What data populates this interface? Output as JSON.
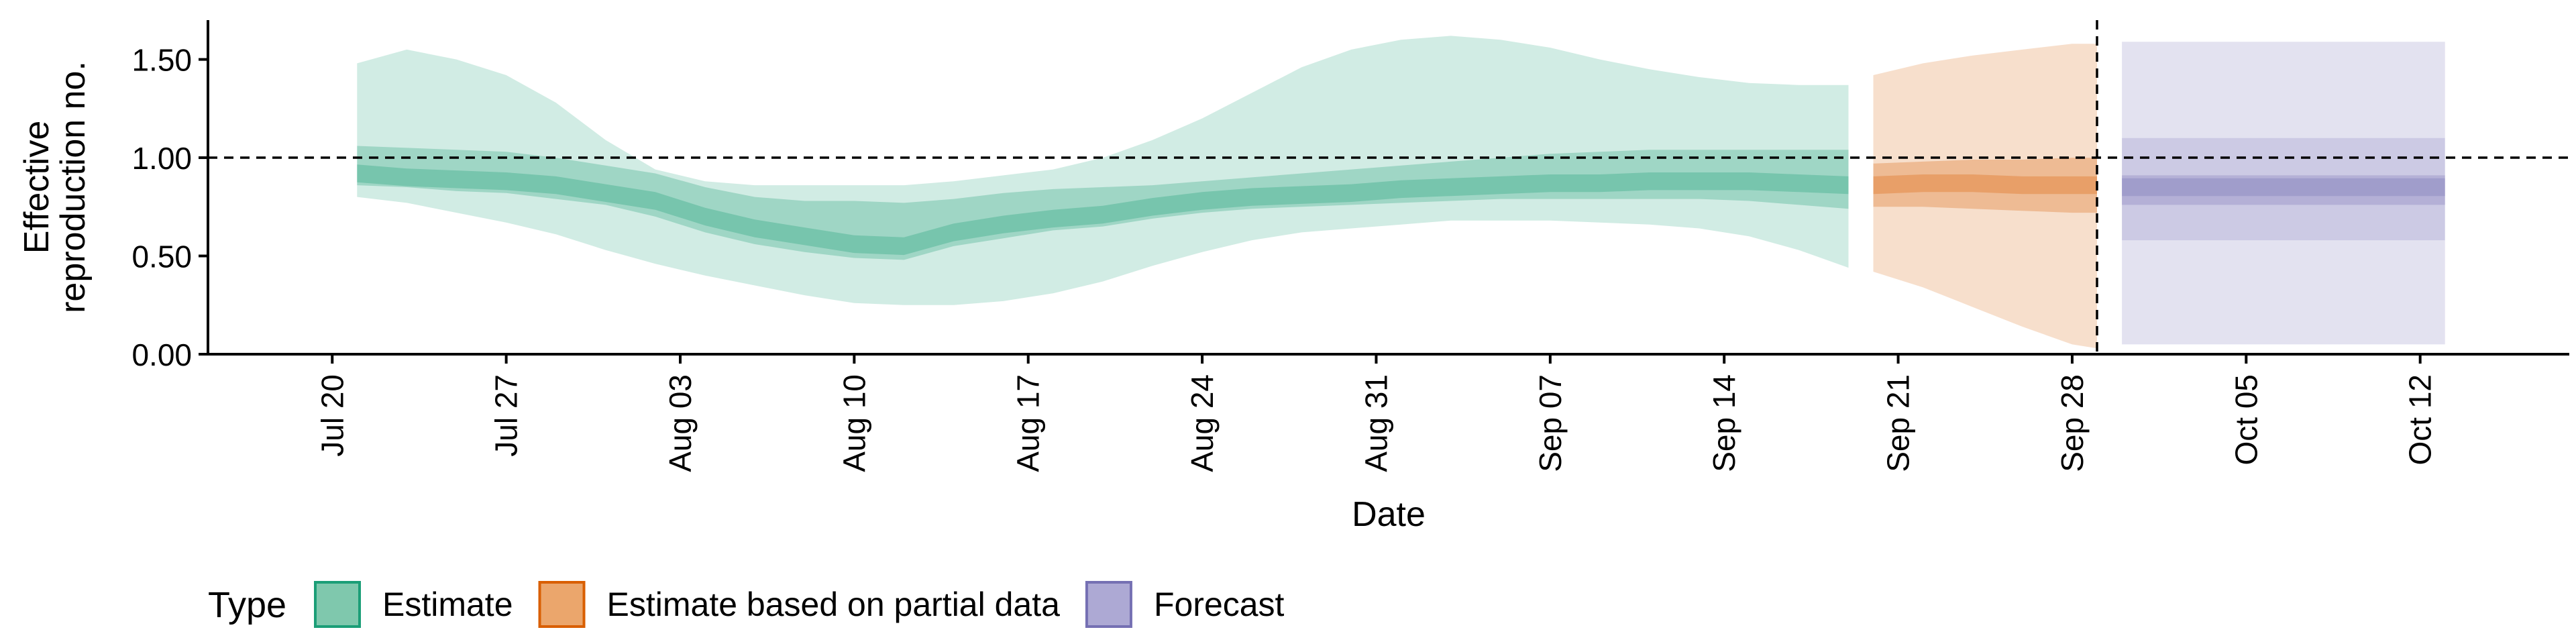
{
  "chart_data": {
    "type": "area",
    "title": "",
    "xlabel": "Date",
    "ylabel": "Effective reproduction no.",
    "ylabel_lines": [
      "Effective",
      "reproduction no."
    ],
    "ylim": [
      0,
      1.7
    ],
    "yticks": [
      "0.00",
      "0.50",
      "1.00",
      "1.50"
    ],
    "ytick_values": [
      0,
      0.5,
      1.0,
      1.5
    ],
    "xlim": [
      "2020-07-15",
      "2020-10-18"
    ],
    "xticks": [
      "Jul 20",
      "Jul 27",
      "Aug 03",
      "Aug 10",
      "Aug 17",
      "Aug 24",
      "Aug 31",
      "Sep 07",
      "Sep 14",
      "Sep 21",
      "Sep 28",
      "Oct 05",
      "Oct 12"
    ],
    "xtick_dates": [
      "2020-07-20",
      "2020-07-27",
      "2020-08-03",
      "2020-08-10",
      "2020-08-17",
      "2020-08-24",
      "2020-08-31",
      "2020-09-07",
      "2020-09-14",
      "2020-09-21",
      "2020-09-28",
      "2020-10-05",
      "2020-10-12"
    ],
    "reference_line": {
      "axis": "y",
      "value": 1.0,
      "style": "dashed"
    },
    "vertical_line": {
      "axis": "x",
      "value": "2020-09-29",
      "style": "dashed"
    },
    "grid": false,
    "legend_position": "bottom-left",
    "series": [
      {
        "name": "Estimate",
        "color": "#1b9e77",
        "dates": [
          "2020-07-21",
          "2020-07-23",
          "2020-07-25",
          "2020-07-27",
          "2020-07-29",
          "2020-07-31",
          "2020-08-02",
          "2020-08-04",
          "2020-08-06",
          "2020-08-08",
          "2020-08-10",
          "2020-08-12",
          "2020-08-14",
          "2020-08-16",
          "2020-08-18",
          "2020-08-20",
          "2020-08-22",
          "2020-08-24",
          "2020-08-26",
          "2020-08-28",
          "2020-08-30",
          "2020-09-01",
          "2020-09-03",
          "2020-09-05",
          "2020-09-07",
          "2020-09-09",
          "2020-09-11",
          "2020-09-13",
          "2020-09-15",
          "2020-09-17",
          "2020-09-19"
        ],
        "median": [
          0.92,
          0.9,
          0.89,
          0.88,
          0.86,
          0.82,
          0.78,
          0.7,
          0.64,
          0.6,
          0.56,
          0.55,
          0.62,
          0.66,
          0.69,
          0.71,
          0.75,
          0.78,
          0.8,
          0.81,
          0.82,
          0.84,
          0.85,
          0.86,
          0.87,
          0.87,
          0.88,
          0.88,
          0.88,
          0.87,
          0.86
        ],
        "lower50": [
          0.86,
          0.85,
          0.83,
          0.82,
          0.79,
          0.76,
          0.7,
          0.62,
          0.56,
          0.52,
          0.49,
          0.48,
          0.55,
          0.59,
          0.63,
          0.65,
          0.69,
          0.72,
          0.74,
          0.75,
          0.76,
          0.77,
          0.78,
          0.79,
          0.79,
          0.79,
          0.79,
          0.79,
          0.78,
          0.76,
          0.74
        ],
        "upper50": [
          1.06,
          1.05,
          1.04,
          1.03,
          1.0,
          0.96,
          0.92,
          0.85,
          0.8,
          0.78,
          0.78,
          0.77,
          0.79,
          0.82,
          0.84,
          0.85,
          0.86,
          0.88,
          0.9,
          0.92,
          0.94,
          0.96,
          0.98,
          1.0,
          1.02,
          1.03,
          1.04,
          1.04,
          1.04,
          1.04,
          1.04
        ],
        "lower90": [
          0.8,
          0.77,
          0.72,
          0.67,
          0.61,
          0.53,
          0.46,
          0.4,
          0.35,
          0.3,
          0.26,
          0.25,
          0.25,
          0.27,
          0.31,
          0.37,
          0.45,
          0.52,
          0.58,
          0.62,
          0.64,
          0.66,
          0.68,
          0.68,
          0.68,
          0.67,
          0.66,
          0.64,
          0.6,
          0.53,
          0.44
        ],
        "upper90": [
          1.48,
          1.55,
          1.5,
          1.42,
          1.28,
          1.09,
          0.94,
          0.88,
          0.86,
          0.86,
          0.86,
          0.86,
          0.88,
          0.91,
          0.94,
          1.0,
          1.09,
          1.2,
          1.33,
          1.46,
          1.55,
          1.6,
          1.62,
          1.6,
          1.56,
          1.5,
          1.45,
          1.41,
          1.38,
          1.37,
          1.37
        ]
      },
      {
        "name": "Estimate based on partial data",
        "color": "#d95f02",
        "dates": [
          "2020-09-20",
          "2020-09-22",
          "2020-09-24",
          "2020-09-26",
          "2020-09-28",
          "2020-09-29"
        ],
        "median": [
          0.86,
          0.87,
          0.87,
          0.86,
          0.86,
          0.86
        ],
        "lower50": [
          0.75,
          0.75,
          0.74,
          0.73,
          0.72,
          0.72
        ],
        "upper50": [
          0.97,
          0.98,
          0.99,
          0.99,
          1.0,
          1.0
        ],
        "lower90": [
          0.42,
          0.34,
          0.24,
          0.14,
          0.05,
          0.03
        ],
        "upper90": [
          1.42,
          1.48,
          1.52,
          1.55,
          1.58,
          1.58
        ]
      },
      {
        "name": "Forecast",
        "color": "#7570b3",
        "dates": [
          "2020-09-30",
          "2020-10-13"
        ],
        "median": [
          0.85,
          0.85
        ],
        "lower50": [
          0.76,
          0.76
        ],
        "upper50": [
          0.91,
          0.91
        ],
        "lower90": [
          0.58,
          0.58
        ],
        "upper90": [
          1.1,
          1.1
        ],
        "lower_outer": [
          0.05,
          0.05
        ],
        "upper_outer": [
          1.59,
          1.59
        ]
      }
    ],
    "legend": {
      "title": "Type",
      "items": [
        {
          "label": "Estimate",
          "color": "#7fc8ad",
          "border": "#1b9e77"
        },
        {
          "label": "Estimate based on partial data",
          "color": "#eba66c",
          "border": "#d95f02"
        },
        {
          "label": "Forecast",
          "color": "#ada9d4",
          "border": "#7570b3"
        }
      ]
    }
  }
}
